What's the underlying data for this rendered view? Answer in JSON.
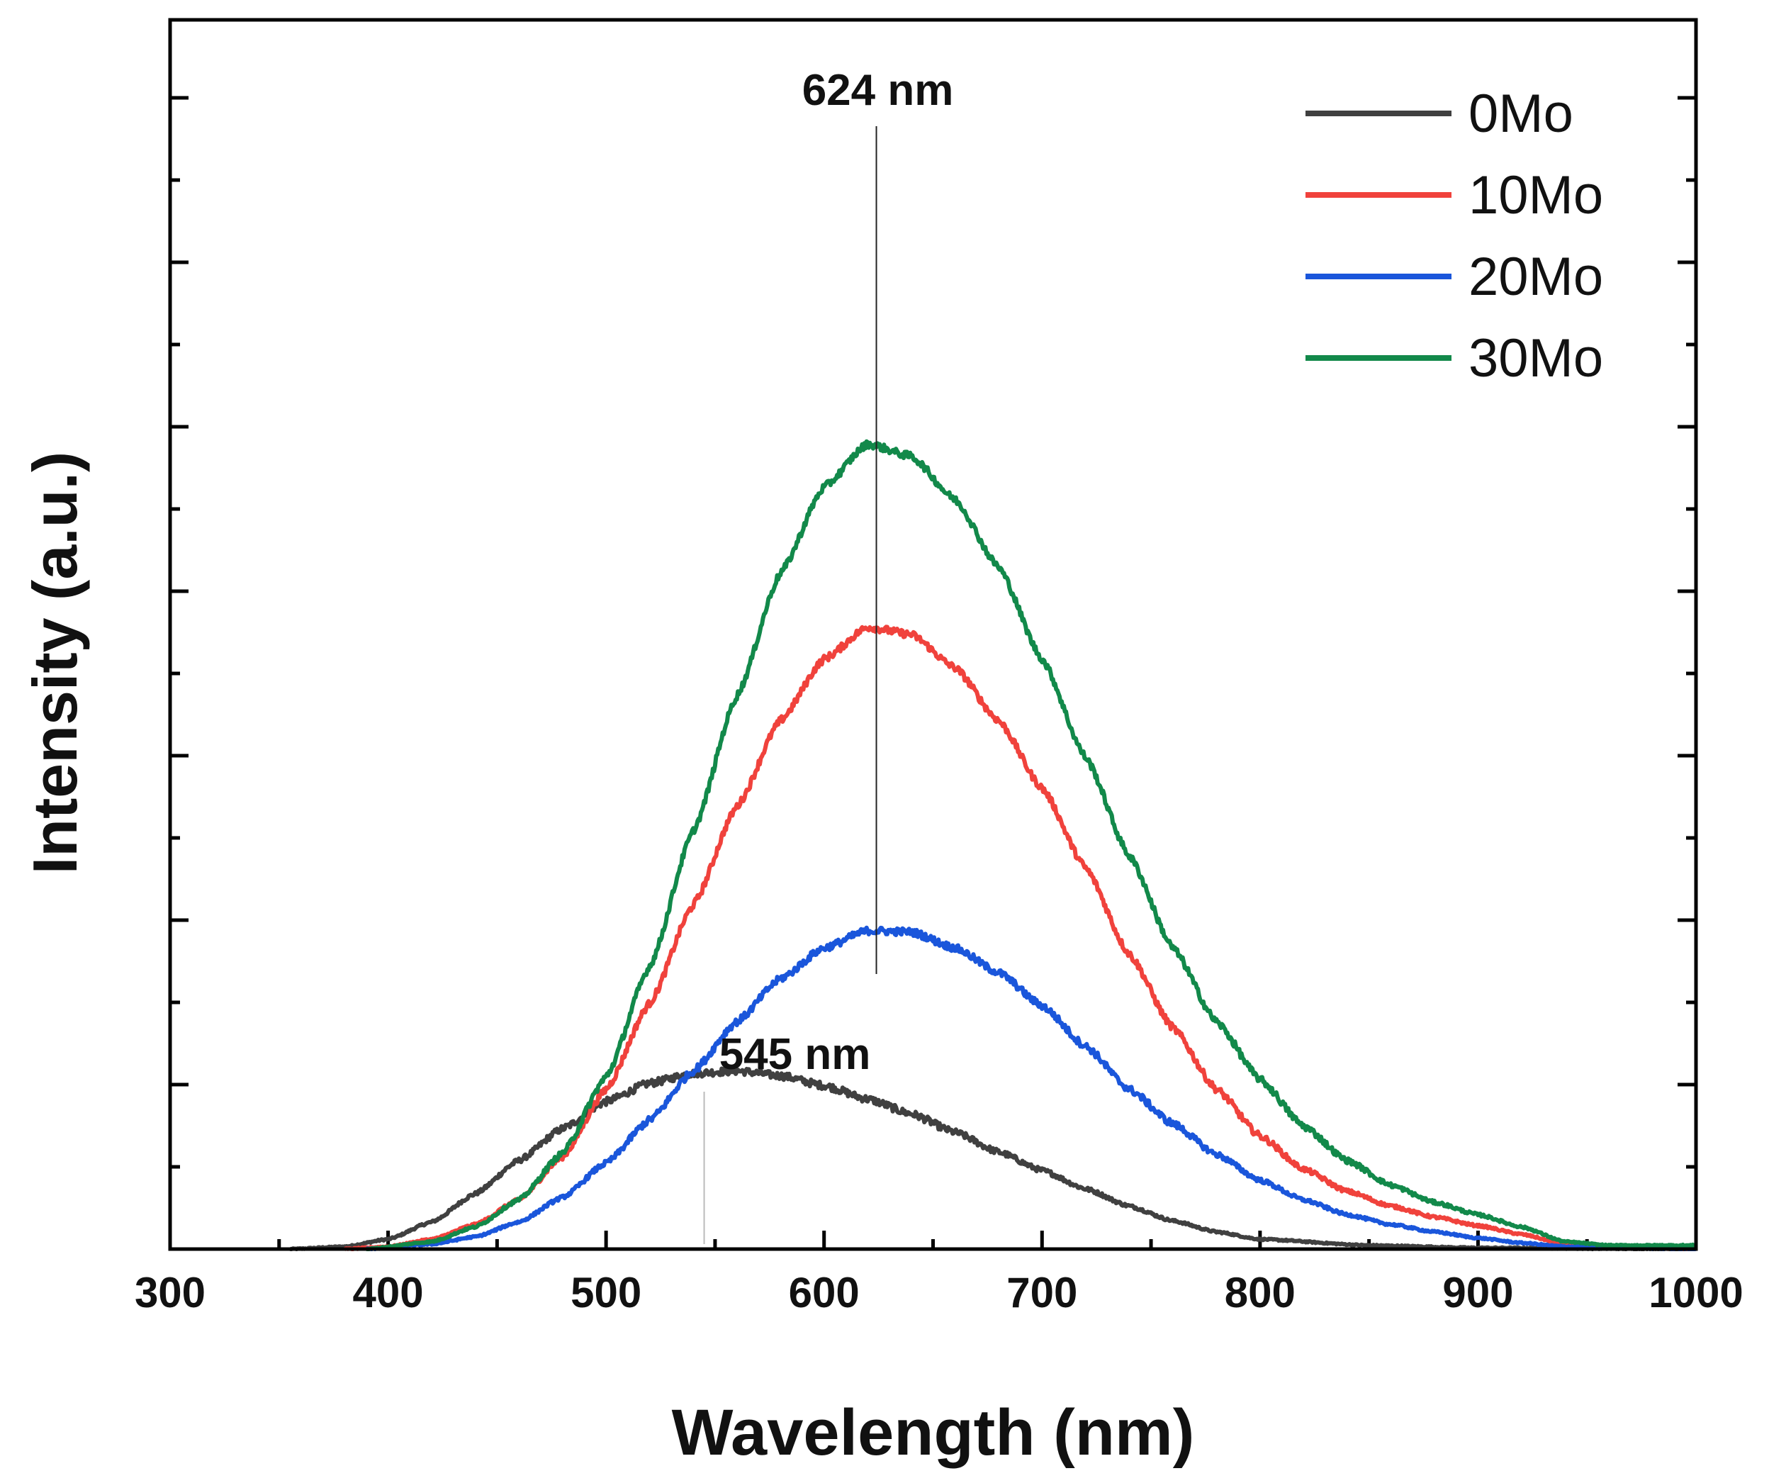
{
  "chart_data": {
    "type": "line",
    "title": "",
    "xlabel": "Wavelength (nm)",
    "ylabel": "Intensity (a.u.)",
    "xlim": [
      300,
      1000
    ],
    "ylim": [
      0,
      1.0
    ],
    "x_ticks": [
      300,
      400,
      500,
      600,
      700,
      800,
      900,
      1000
    ],
    "x_tick_labels": [
      "300",
      "400",
      "500",
      "600",
      "700",
      "800",
      "900",
      "1000"
    ],
    "y_tick_labels_shown": false,
    "grid": false,
    "legend_position": "top-right",
    "series": [
      {
        "name": "0Mo",
        "color": "#404040",
        "points": [
          [
            355,
            0.0
          ],
          [
            380,
            0.002
          ],
          [
            400,
            0.008
          ],
          [
            420,
            0.022
          ],
          [
            440,
            0.045
          ],
          [
            460,
            0.072
          ],
          [
            480,
            0.098
          ],
          [
            500,
            0.12
          ],
          [
            520,
            0.135
          ],
          [
            540,
            0.143
          ],
          [
            560,
            0.145
          ],
          [
            580,
            0.141
          ],
          [
            600,
            0.133
          ],
          [
            620,
            0.122
          ],
          [
            640,
            0.11
          ],
          [
            660,
            0.095
          ],
          [
            680,
            0.079
          ],
          [
            700,
            0.064
          ],
          [
            720,
            0.049
          ],
          [
            740,
            0.035
          ],
          [
            760,
            0.023
          ],
          [
            780,
            0.014
          ],
          [
            800,
            0.008
          ],
          [
            850,
            0.003
          ],
          [
            900,
            0.001
          ],
          [
            1000,
            0.0
          ]
        ]
      },
      {
        "name": "10Mo",
        "color": "#f0423c",
        "points": [
          [
            380,
            0.0
          ],
          [
            400,
            0.002
          ],
          [
            420,
            0.008
          ],
          [
            440,
            0.02
          ],
          [
            460,
            0.04
          ],
          [
            480,
            0.075
          ],
          [
            500,
            0.13
          ],
          [
            520,
            0.2
          ],
          [
            540,
            0.28
          ],
          [
            560,
            0.36
          ],
          [
            580,
            0.43
          ],
          [
            600,
            0.48
          ],
          [
            620,
            0.506
          ],
          [
            640,
            0.5
          ],
          [
            660,
            0.473
          ],
          [
            680,
            0.43
          ],
          [
            700,
            0.375
          ],
          [
            720,
            0.31
          ],
          [
            740,
            0.24
          ],
          [
            760,
            0.18
          ],
          [
            780,
            0.13
          ],
          [
            800,
            0.092
          ],
          [
            820,
            0.065
          ],
          [
            840,
            0.047
          ],
          [
            860,
            0.035
          ],
          [
            880,
            0.026
          ],
          [
            900,
            0.019
          ],
          [
            920,
            0.012
          ],
          [
            940,
            0.004
          ],
          [
            960,
            0.002
          ],
          [
            1000,
            0.0
          ]
        ]
      },
      {
        "name": "20Mo",
        "color": "#1a56db",
        "points": [
          [
            390,
            0.0
          ],
          [
            420,
            0.004
          ],
          [
            440,
            0.01
          ],
          [
            460,
            0.022
          ],
          [
            480,
            0.042
          ],
          [
            500,
            0.07
          ],
          [
            520,
            0.105
          ],
          [
            540,
            0.145
          ],
          [
            560,
            0.185
          ],
          [
            580,
            0.22
          ],
          [
            600,
            0.245
          ],
          [
            620,
            0.259
          ],
          [
            640,
            0.258
          ],
          [
            660,
            0.245
          ],
          [
            680,
            0.225
          ],
          [
            700,
            0.198
          ],
          [
            720,
            0.165
          ],
          [
            740,
            0.13
          ],
          [
            760,
            0.102
          ],
          [
            780,
            0.077
          ],
          [
            800,
            0.056
          ],
          [
            820,
            0.04
          ],
          [
            840,
            0.028
          ],
          [
            860,
            0.02
          ],
          [
            880,
            0.014
          ],
          [
            900,
            0.009
          ],
          [
            920,
            0.005
          ],
          [
            940,
            0.002
          ],
          [
            960,
            0.001
          ],
          [
            1000,
            0.0
          ]
        ]
      },
      {
        "name": "30Mo",
        "color": "#12894a",
        "points": [
          [
            390,
            0.0
          ],
          [
            420,
            0.006
          ],
          [
            440,
            0.018
          ],
          [
            460,
            0.04
          ],
          [
            480,
            0.078
          ],
          [
            500,
            0.14
          ],
          [
            520,
            0.23
          ],
          [
            540,
            0.34
          ],
          [
            560,
            0.45
          ],
          [
            580,
            0.55
          ],
          [
            600,
            0.62
          ],
          [
            620,
            0.655
          ],
          [
            640,
            0.645
          ],
          [
            660,
            0.61
          ],
          [
            680,
            0.555
          ],
          [
            700,
            0.48
          ],
          [
            720,
            0.4
          ],
          [
            740,
            0.32
          ],
          [
            760,
            0.245
          ],
          [
            780,
            0.185
          ],
          [
            800,
            0.138
          ],
          [
            820,
            0.1
          ],
          [
            840,
            0.072
          ],
          [
            860,
            0.052
          ],
          [
            880,
            0.038
          ],
          [
            900,
            0.028
          ],
          [
            920,
            0.018
          ],
          [
            940,
            0.006
          ],
          [
            960,
            0.003
          ],
          [
            1000,
            0.003
          ]
        ]
      }
    ],
    "annotations": [
      {
        "text": "624 nm",
        "x": 624
      },
      {
        "text": "545 nm",
        "x": 545
      }
    ]
  }
}
